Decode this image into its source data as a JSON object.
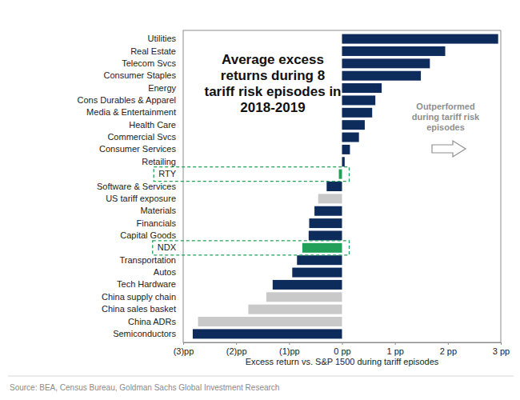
{
  "chart_data": {
    "type": "bar",
    "orientation": "horizontal",
    "title": "Average excess\nreturns during 8\ntariff risk episodes in\n2018-2019",
    "categories": [
      "Utilities",
      "Real Estate",
      "Telecom Svcs",
      "Consumer Staples",
      "Energy",
      "Cons Durables & Apparel",
      "Media & Entertainment",
      "Health Care",
      "Commercial Svcs",
      "Consumer Services",
      "Retailing",
      "RTY",
      "Software & Services",
      "US tariff exposure",
      "Materials",
      "Financials",
      "Capital Goods",
      "NDX",
      "Transportation",
      "Autos",
      "Tech Hardware",
      "China supply chain",
      "China sales basket",
      "China ADRs",
      "Semiconductors"
    ],
    "values": [
      2.95,
      1.95,
      1.66,
      1.49,
      0.75,
      0.63,
      0.57,
      0.43,
      0.32,
      0.15,
      0.05,
      -0.06,
      -0.29,
      -0.45,
      -0.52,
      -0.62,
      -0.63,
      -0.75,
      -0.85,
      -0.94,
      -1.31,
      -1.43,
      -1.77,
      -2.72,
      -2.82
    ],
    "colors": [
      "#0d2b5b",
      "#0d2b5b",
      "#0d2b5b",
      "#0d2b5b",
      "#0d2b5b",
      "#0d2b5b",
      "#0d2b5b",
      "#0d2b5b",
      "#0d2b5b",
      "#0d2b5b",
      "#0d2b5b",
      "#22a05a",
      "#0d2b5b",
      "#c9c9c9",
      "#0d2b5b",
      "#0d2b5b",
      "#0d2b5b",
      "#22a05a",
      "#0d2b5b",
      "#0d2b5b",
      "#0d2b5b",
      "#c9c9c9",
      "#c9c9c9",
      "#c9c9c9",
      "#0d2b5b"
    ],
    "x_label": "Excess return vs. S&P 1500 during tariff episodes",
    "xlim": [
      -3,
      3
    ],
    "xticks": [
      {
        "value": -3,
        "label": "(3)pp"
      },
      {
        "value": -2,
        "label": "(2)pp"
      },
      {
        "value": -1,
        "label": "(1)pp"
      },
      {
        "value": 0,
        "label": "0 pp"
      },
      {
        "value": 1,
        "label": "1 pp"
      },
      {
        "value": 2,
        "label": "2 pp"
      },
      {
        "value": 3,
        "label": "3 pp"
      }
    ],
    "annotations": [
      {
        "text": "Outperformed\nduring tariff risk\nepisodes"
      }
    ],
    "source": "Source: BEA, Census Bureau, Goldman Sachs Global Investment Research"
  }
}
